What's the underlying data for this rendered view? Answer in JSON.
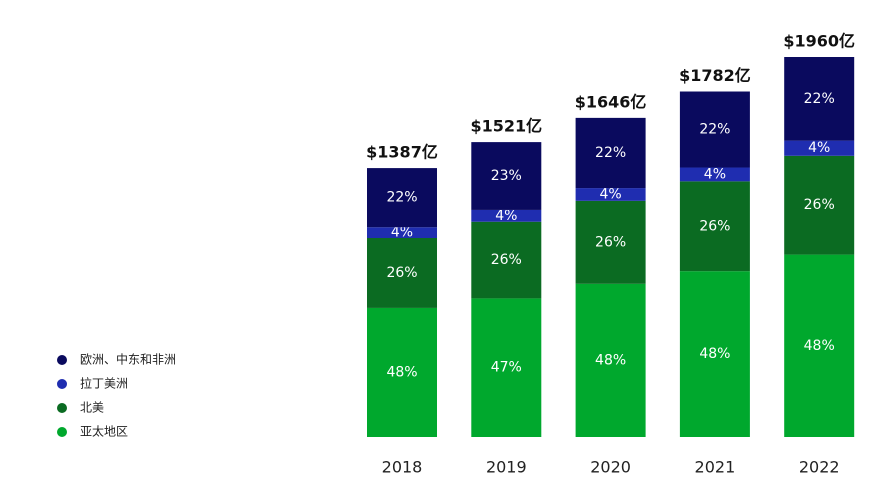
{
  "chart_data": {
    "type": "stacked-bar",
    "categories": [
      "2018",
      "2019",
      "2020",
      "2021",
      "2022"
    ],
    "series": [
      {
        "name": "欧洲、中东和非洲",
        "color": "#0a0a5e",
        "values": [
          22,
          23,
          22,
          22,
          22
        ],
        "value_labels": [
          "22%",
          "23%",
          "22%",
          "22%",
          "22%"
        ]
      },
      {
        "name": "拉丁美洲",
        "color": "#1f2db0",
        "values": [
          4,
          4,
          4,
          4,
          4
        ],
        "value_labels": [
          "4%",
          "4%",
          "4%",
          "4%",
          "4%"
        ]
      },
      {
        "name": "北美",
        "color": "#0b6b22",
        "values": [
          26,
          26,
          26,
          26,
          26
        ],
        "value_labels": [
          "26%",
          "26%",
          "26%",
          "26%",
          "26%"
        ]
      },
      {
        "name": "亚太地区",
        "color": "#00a82d",
        "values": [
          48,
          47,
          48,
          48,
          48
        ],
        "value_labels": [
          "48%",
          "47%",
          "48%",
          "48%",
          "48%"
        ]
      }
    ],
    "totals": {
      "values": [
        1387,
        1521,
        1646,
        1782,
        1960
      ],
      "value_labels": [
        "$1387亿",
        "$1521亿",
        "$1646亿",
        "$1782亿",
        "$1960亿"
      ]
    },
    "legend": "left"
  }
}
